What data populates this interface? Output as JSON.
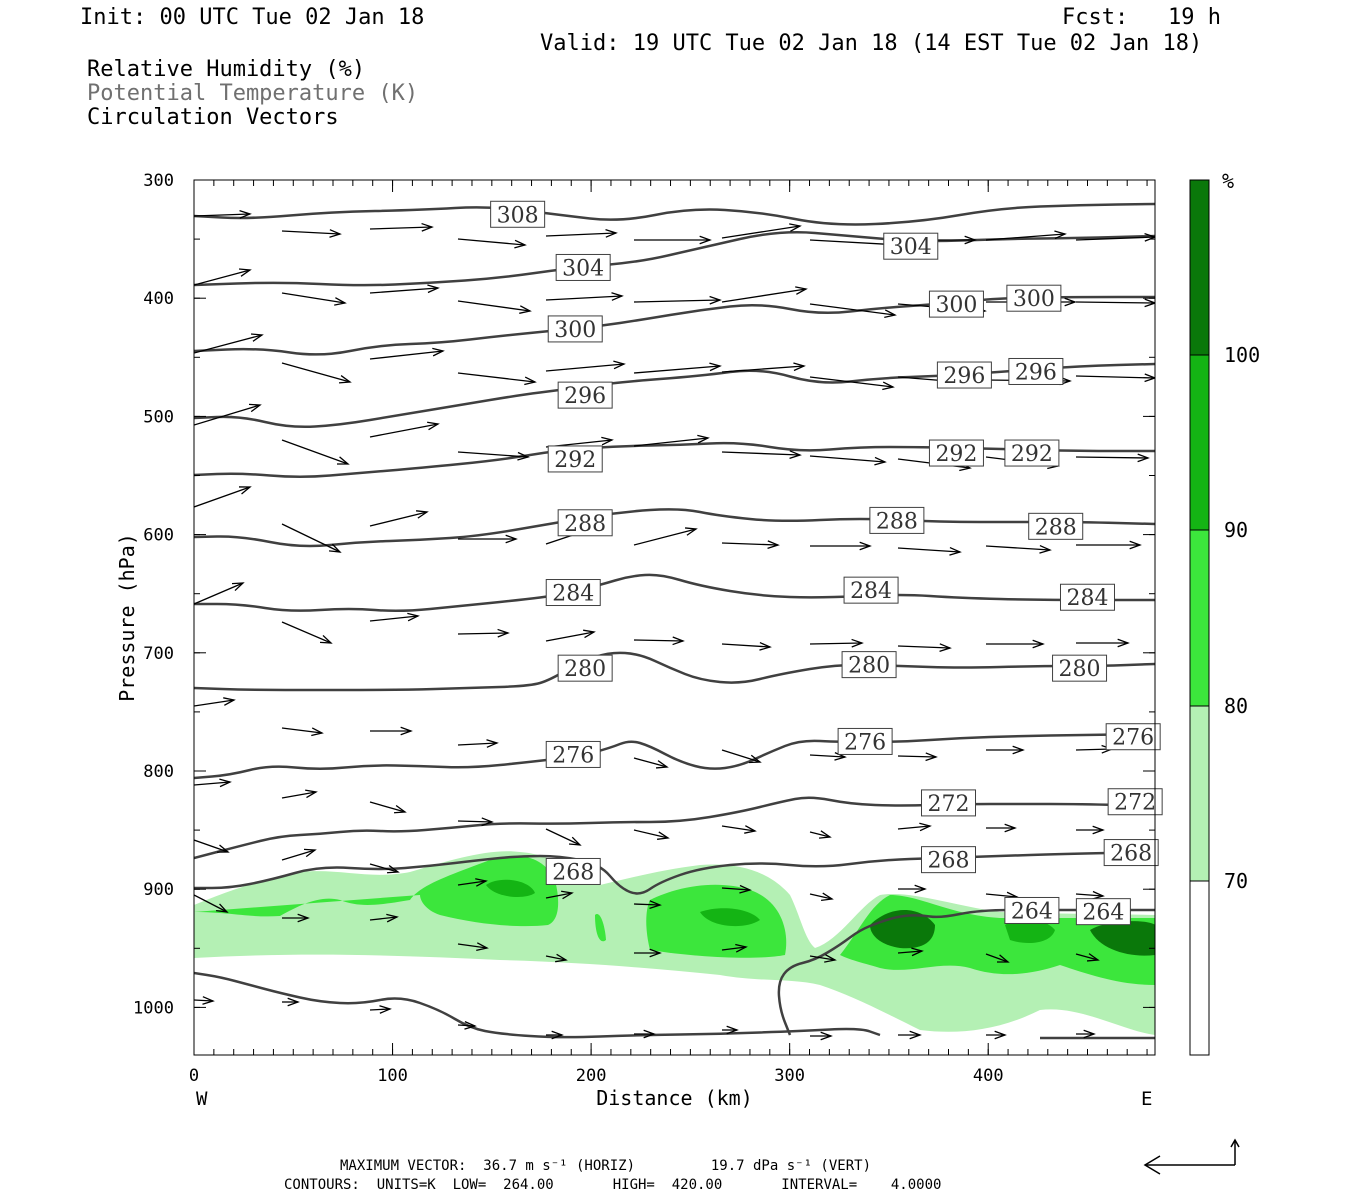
{
  "header": {
    "init": "Init: 00 UTC Tue 02 Jan 18",
    "fcst": "Fcst:   19 h",
    "valid": "Valid: 19 UTC Tue 02 Jan 18 (14 EST Tue 02 Jan 18)",
    "field1": "Relative Humidity (%)",
    "field2": "Potential Temperature (K)",
    "field3": "Circulation Vectors"
  },
  "footer": {
    "max_vector": "MAXIMUM VECTOR:  36.7 m s⁻¹ (HORIZ)         19.7 dPa s⁻¹ (VERT)",
    "contours": "CONTOURS:  UNITS=K  LOW=  264.00       HIGH=  420.00       INTERVAL=    4.0000"
  },
  "colors": {
    "rh_70_80": "#b4f0b4",
    "rh_80_90": "#3ce63c",
    "rh_90_100": "#14b414",
    "rh_100": "#0a780a",
    "contour": "#404040"
  },
  "chart_data": {
    "type": "cross-section",
    "xlabel": "Distance (km)",
    "ylabel": "Pressure (hPa)",
    "x_ticks": [
      "0",
      "100",
      "200",
      "300",
      "400"
    ],
    "y_ticks": [
      "300",
      "400",
      "500",
      "600",
      "700",
      "800",
      "900",
      "1000"
    ],
    "xlim": [
      0,
      484
    ],
    "ylim": [
      1040,
      300
    ],
    "west_label": "W",
    "east_label": "E",
    "colorbar": {
      "unit": "%",
      "levels": [
        "70",
        "80",
        "90",
        "100"
      ]
    },
    "theta_contours": [
      {
        "value": 308,
        "label": "308"
      },
      {
        "value": 304,
        "label": "304"
      },
      {
        "value": 300,
        "label": "300"
      },
      {
        "value": 296,
        "label": "296"
      },
      {
        "value": 292,
        "label": "292"
      },
      {
        "value": 288,
        "label": "288"
      },
      {
        "value": 284,
        "label": "284"
      },
      {
        "value": 280,
        "label": "280"
      },
      {
        "value": 276,
        "label": "276"
      },
      {
        "value": 272,
        "label": "272"
      },
      {
        "value": 268,
        "label": "268"
      },
      {
        "value": 264,
        "label": "264"
      }
    ],
    "contour_labels": [
      {
        "text": "308",
        "x": 163,
        "p": 329
      },
      {
        "text": "304",
        "x": 196,
        "p": 374
      },
      {
        "text": "304",
        "x": 361,
        "p": 356
      },
      {
        "text": "300",
        "x": 192,
        "p": 426
      },
      {
        "text": "300",
        "x": 384,
        "p": 405
      },
      {
        "text": "300",
        "x": 423,
        "p": 400
      },
      {
        "text": "296",
        "x": 197,
        "p": 482
      },
      {
        "text": "296",
        "x": 388,
        "p": 465
      },
      {
        "text": "296",
        "x": 424,
        "p": 462
      },
      {
        "text": "292",
        "x": 192,
        "p": 536
      },
      {
        "text": "292",
        "x": 384,
        "p": 531
      },
      {
        "text": "292",
        "x": 422,
        "p": 531
      },
      {
        "text": "288",
        "x": 197,
        "p": 590
      },
      {
        "text": "288",
        "x": 354,
        "p": 588
      },
      {
        "text": "288",
        "x": 434,
        "p": 593
      },
      {
        "text": "284",
        "x": 191,
        "p": 649
      },
      {
        "text": "284",
        "x": 341,
        "p": 647
      },
      {
        "text": "284",
        "x": 450,
        "p": 653
      },
      {
        "text": "280",
        "x": 197,
        "p": 713
      },
      {
        "text": "280",
        "x": 340,
        "p": 710
      },
      {
        "text": "280",
        "x": 446,
        "p": 713
      },
      {
        "text": "276",
        "x": 191,
        "p": 786
      },
      {
        "text": "276",
        "x": 338,
        "p": 775
      },
      {
        "text": "276",
        "x": 473,
        "p": 771
      },
      {
        "text": "272",
        "x": 380,
        "p": 827
      },
      {
        "text": "272",
        "x": 474,
        "p": 826
      },
      {
        "text": "268",
        "x": 191,
        "p": 885
      },
      {
        "text": "268",
        "x": 380,
        "p": 875
      },
      {
        "text": "268",
        "x": 472,
        "p": 869
      },
      {
        "text": "264",
        "x": 422,
        "p": 918
      },
      {
        "text": "264",
        "x": 458,
        "p": 919
      }
    ]
  }
}
